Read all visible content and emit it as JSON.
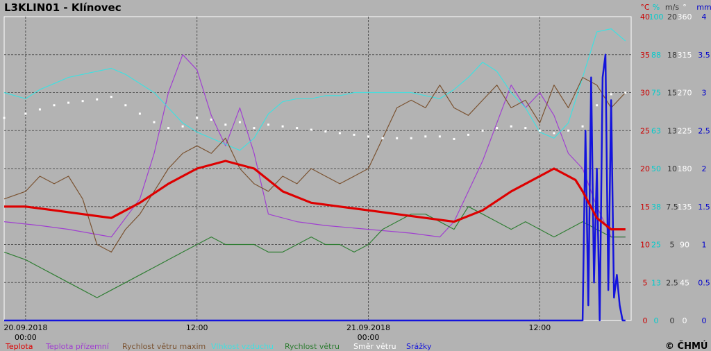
{
  "chart_data": {
    "type": "line",
    "title": "L3KLIN01 - Klínovec",
    "copyright": "© ČHMÚ",
    "x_labels": [
      {
        "line1": "20.09.2018",
        "line2": "00:00",
        "t": 0
      },
      {
        "line1": "12:00",
        "line2": "",
        "t": 12
      },
      {
        "line1": "21.09.2018",
        "line2": "00:00",
        "t": 24
      },
      {
        "line1": "12:00",
        "line2": "",
        "t": 36
      }
    ],
    "x_range": [
      -1.5,
      42.4
    ],
    "axes": [
      {
        "unit": "°C",
        "color": "#cc0000",
        "ticks": [
          "40",
          "35",
          "30",
          "25",
          "20",
          "15",
          "10",
          "5",
          "0"
        ]
      },
      {
        "unit": "%",
        "color": "#00cccc",
        "ticks": [
          "100",
          "88",
          "75",
          "63",
          "50",
          "38",
          "25",
          "13",
          "0"
        ]
      },
      {
        "unit": "m/s",
        "color": "#333333",
        "ticks": [
          "20",
          "18",
          "15",
          "13",
          "10",
          "7.5",
          "5",
          "2.5",
          "0"
        ]
      },
      {
        "unit": "°",
        "color": "#ffffff",
        "ticks": [
          "360",
          "315",
          "270",
          "225",
          "180",
          "135",
          "90",
          "45",
          "0"
        ]
      },
      {
        "unit": "mm",
        "color": "#0000cc",
        "ticks": [
          "4",
          "3.5",
          "3",
          "2.5",
          "2",
          "1.5",
          "1",
          "0.5",
          "0"
        ]
      }
    ],
    "legend": [
      {
        "key": "temp",
        "label": "Teplota",
        "color": "#dd0000"
      },
      {
        "key": "ground",
        "label": "Teplota přízemní",
        "color": "#a040d0"
      },
      {
        "key": "gust",
        "label": "Rychlost větru maxim",
        "color": "#7a5230"
      },
      {
        "key": "hum",
        "label": "Vlhkost vzduchu",
        "color": "#40e0e0"
      },
      {
        "key": "wind",
        "label": "Rychlost větru",
        "color": "#2e7d32"
      },
      {
        "key": "dir",
        "label": "Směr větru",
        "color": "#ffffff"
      },
      {
        "key": "precip",
        "label": "Srážky",
        "color": "#1414dc"
      }
    ],
    "series": [
      {
        "key": "temp",
        "name": "Teplota",
        "unit": "°C",
        "x": [
          -1.5,
          0,
          2,
          4,
          6,
          8,
          10,
          12,
          14,
          16,
          18,
          20,
          22,
          24,
          26,
          28,
          30,
          32,
          34,
          36,
          37,
          38.5,
          39,
          40,
          41,
          42
        ],
        "y": [
          15,
          15,
          14.5,
          14,
          13.5,
          15.5,
          18,
          20,
          21,
          20,
          17,
          15.5,
          15,
          14.5,
          14,
          13.5,
          13,
          14.5,
          17,
          19,
          20,
          18.5,
          17,
          13.5,
          12,
          12
        ]
      },
      {
        "key": "ground",
        "name": "Teplota přízemní",
        "unit": "°C",
        "x": [
          -1.5,
          1,
          3,
          4.5,
          6,
          8,
          9,
          10,
          11,
          12,
          13,
          14,
          15,
          16,
          17,
          19,
          21,
          24,
          27,
          29,
          30,
          31,
          32,
          33,
          34,
          35,
          36,
          37,
          38,
          39,
          40,
          41,
          42
        ],
        "y": [
          13,
          12.5,
          12,
          11.5,
          11,
          16,
          22,
          30,
          35,
          33,
          27,
          23,
          28,
          22,
          14,
          13,
          12.5,
          12,
          11.5,
          11,
          13,
          17,
          21,
          26,
          31,
          28,
          30,
          27,
          22,
          20,
          15,
          11,
          11
        ]
      },
      {
        "key": "gust",
        "name": "Rychlost větru maxim",
        "unit": "m/s",
        "x": [
          -1.5,
          0,
          1,
          2,
          3,
          4,
          5,
          6,
          7,
          8,
          9,
          10,
          11,
          12,
          13,
          14,
          15,
          16,
          17,
          18,
          19,
          20,
          21,
          22,
          23,
          24,
          25,
          26,
          27,
          28,
          29,
          30,
          31,
          32,
          33,
          34,
          35,
          36,
          37,
          38,
          39,
          40,
          41,
          42
        ],
        "y": [
          8,
          8.5,
          9.5,
          9,
          9.5,
          8,
          5,
          4.5,
          6,
          7,
          8.5,
          10,
          11,
          11.5,
          11,
          12,
          10,
          9,
          8.5,
          9.5,
          9,
          10,
          9.5,
          9,
          9.5,
          10,
          12,
          14,
          14.5,
          14,
          15.5,
          14,
          13.5,
          14.5,
          15.5,
          14,
          14.5,
          13,
          15.5,
          14,
          16,
          15.5,
          14,
          15
        ]
      },
      {
        "key": "hum",
        "name": "Vlhkost vzduchu",
        "unit": "%",
        "x": [
          -1.5,
          0,
          1,
          2,
          3,
          4,
          5,
          6,
          7,
          8,
          9,
          10,
          11,
          12,
          13,
          14,
          15,
          16,
          17,
          18,
          19,
          20,
          21,
          22,
          23,
          24,
          25,
          26,
          27,
          28,
          29,
          30,
          31,
          32,
          33,
          34,
          35,
          36,
          37,
          38,
          39,
          40,
          41,
          42
        ],
        "y": [
          75,
          73,
          76,
          78,
          80,
          81,
          82,
          83,
          81,
          78,
          75,
          70,
          65,
          62,
          60,
          58,
          56,
          60,
          68,
          72,
          73,
          73,
          74,
          74,
          75,
          75,
          75,
          75,
          75,
          74,
          73,
          76,
          80,
          85,
          82,
          75,
          70,
          62,
          60,
          65,
          80,
          95,
          96,
          92
        ]
      },
      {
        "key": "wind",
        "name": "Rychlost větru",
        "unit": "m/s",
        "x": [
          -1.5,
          0,
          1,
          2,
          3,
          4,
          5,
          6,
          7,
          8,
          9,
          10,
          11,
          12,
          13,
          14,
          15,
          16,
          17,
          18,
          19,
          20,
          21,
          22,
          23,
          24,
          25,
          26,
          27,
          28,
          29,
          30,
          31,
          32,
          33,
          34,
          35,
          36,
          37,
          38,
          39,
          40,
          41,
          42
        ],
        "y": [
          4.5,
          4,
          3.5,
          3,
          2.5,
          2,
          1.5,
          2,
          2.5,
          3,
          3.5,
          4,
          4.5,
          5,
          5.5,
          5,
          5,
          5,
          4.5,
          4.5,
          5,
          5.5,
          5,
          5,
          4.5,
          5,
          6,
          6.5,
          7,
          7,
          6.5,
          6,
          7.5,
          7,
          6.5,
          6,
          6.5,
          6,
          5.5,
          6,
          6.5,
          6,
          5.5,
          5.5
        ]
      },
      {
        "key": "dir",
        "name": "Směr větru",
        "unit": "°",
        "x": [
          -1.5,
          0,
          1,
          2,
          3,
          4,
          5,
          6,
          7,
          8,
          9,
          10,
          11,
          12,
          13,
          14,
          15,
          16,
          17,
          18,
          19,
          20,
          21,
          22,
          23,
          24,
          25,
          26,
          27,
          28,
          29,
          30,
          31,
          32,
          33,
          34,
          35,
          36,
          37,
          38,
          39,
          40,
          41,
          42
        ],
        "y": [
          240,
          245,
          250,
          255,
          258,
          260,
          262,
          265,
          255,
          245,
          235,
          228,
          230,
          240,
          238,
          232,
          235,
          228,
          232,
          230,
          228,
          226,
          224,
          222,
          220,
          218,
          216,
          216,
          216,
          218,
          218,
          215,
          220,
          225,
          228,
          230,
          228,
          225,
          222,
          225,
          230,
          255,
          268,
          270
        ]
      },
      {
        "key": "precip",
        "name": "Srážky",
        "unit": "mm",
        "x": [
          -1.5,
          39,
          39.2,
          39.4,
          39.6,
          39.8,
          40,
          40.2,
          40.4,
          40.6,
          40.8,
          41,
          41.2,
          41.4,
          41.6,
          41.8,
          42
        ],
        "y": [
          0,
          0,
          2.5,
          0.2,
          3.2,
          0.5,
          2,
          0,
          3.2,
          3.5,
          0.4,
          2.9,
          0.3,
          0.6,
          0.2,
          0,
          0
        ]
      }
    ]
  }
}
